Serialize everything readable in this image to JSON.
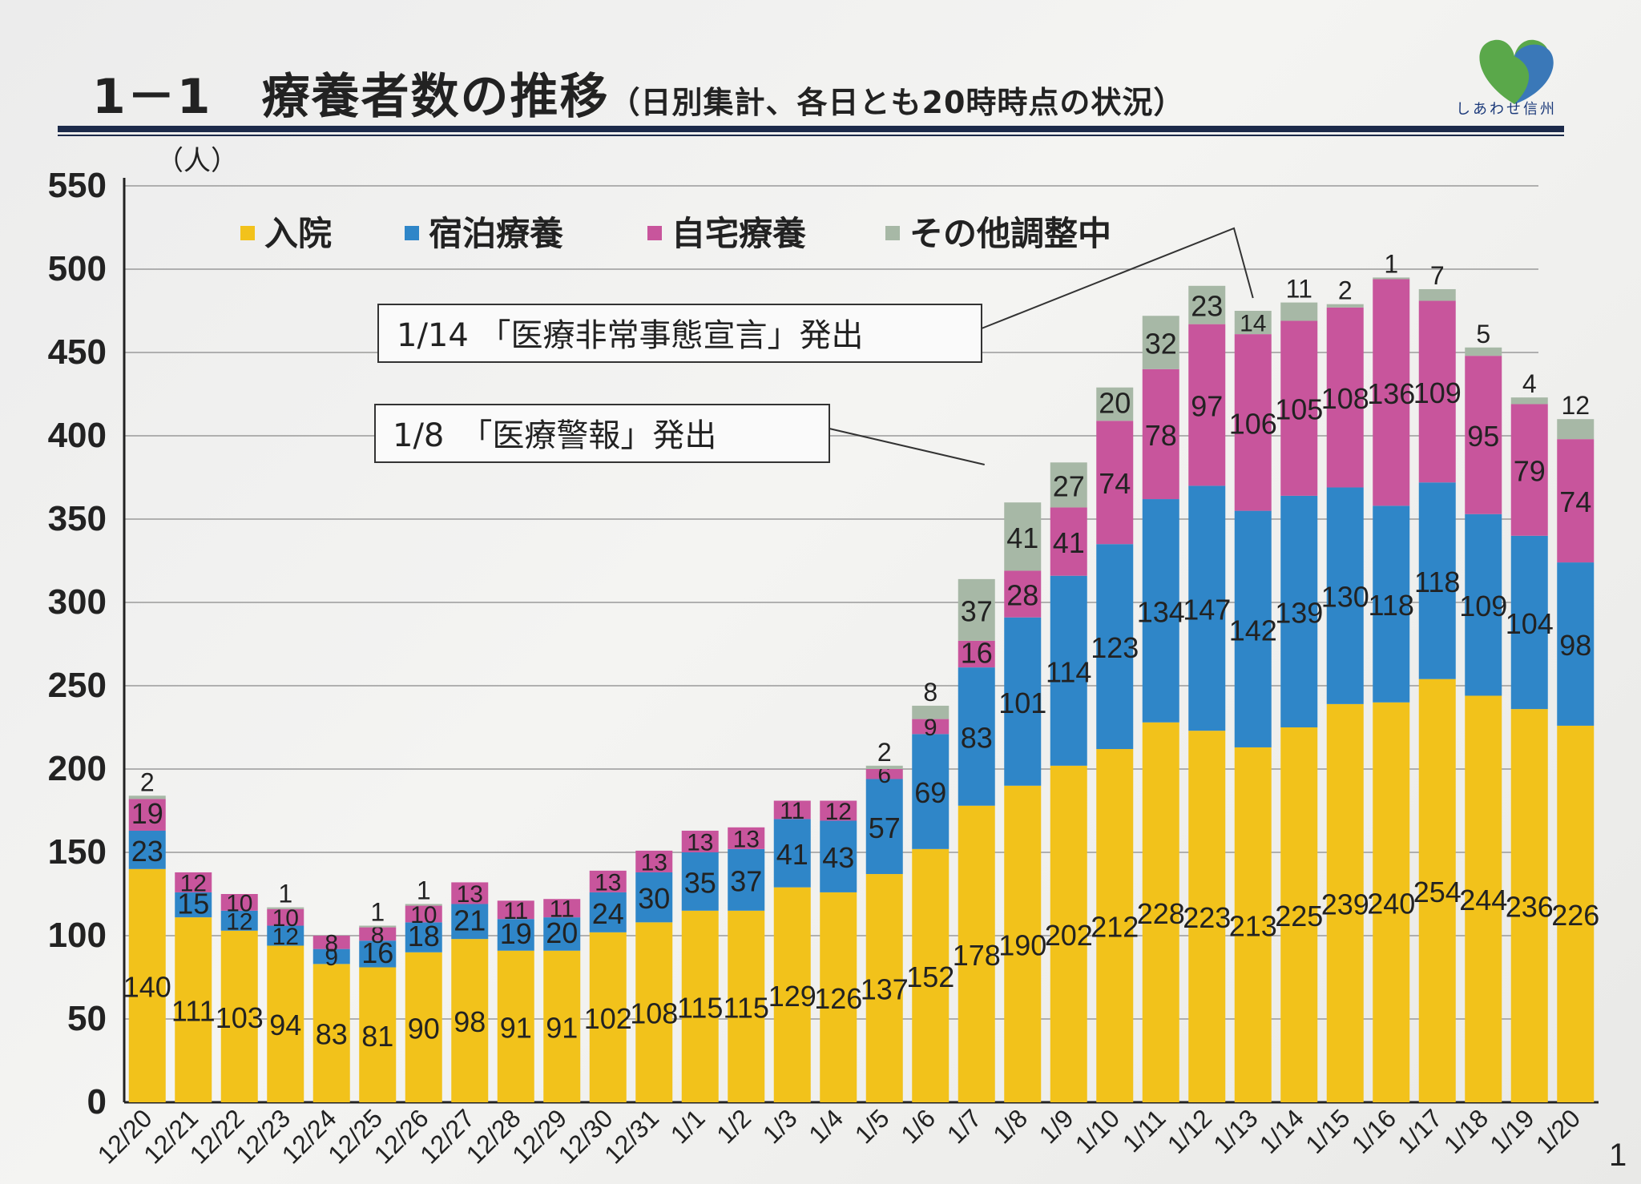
{
  "header": {
    "title_main": "1－1　療養者数の推移",
    "title_sub": "（日別集計、各日とも20時時点の状況）",
    "logo_text": "しあわせ信州"
  },
  "page_number": "1",
  "colors": {
    "入院": "#f2c21b",
    "宿泊療養": "#2f86c8",
    "自宅療養": "#c8559c",
    "その他調整中": "#a7b8a6",
    "title_rule": "#1c2a4a"
  },
  "chart_data": {
    "type": "bar",
    "stacked": true,
    "yunit": "（人）",
    "ylim": [
      0,
      550
    ],
    "yticks": [
      "0",
      "50",
      "100",
      "150",
      "200",
      "250",
      "300",
      "350",
      "400",
      "450",
      "500",
      "550"
    ],
    "grid": true,
    "legend_position": "top",
    "categories": [
      "12/20",
      "12/21",
      "12/22",
      "12/23",
      "12/24",
      "12/25",
      "12/26",
      "12/27",
      "12/28",
      "12/29",
      "12/30",
      "12/31",
      "1/1",
      "1/2",
      "1/3",
      "1/4",
      "1/5",
      "1/6",
      "1/7",
      "1/8",
      "1/9",
      "1/10",
      "1/11",
      "1/12",
      "1/13",
      "1/14",
      "1/15",
      "1/16",
      "1/17",
      "1/18",
      "1/19",
      "1/20"
    ],
    "series": [
      {
        "name": "入院",
        "color": "#f2c21b",
        "values": [
          140,
          111,
          103,
          94,
          83,
          81,
          90,
          98,
          91,
          91,
          102,
          108,
          115,
          115,
          129,
          126,
          137,
          152,
          178,
          190,
          202,
          212,
          228,
          223,
          213,
          225,
          239,
          240,
          254,
          244,
          236,
          226
        ]
      },
      {
        "name": "宿泊療養",
        "color": "#2f86c8",
        "values": [
          23,
          15,
          12,
          12,
          9,
          16,
          18,
          21,
          19,
          20,
          24,
          30,
          35,
          37,
          41,
          43,
          57,
          69,
          83,
          101,
          114,
          123,
          134,
          147,
          142,
          139,
          130,
          118,
          118,
          109,
          104,
          98
        ]
      },
      {
        "name": "自宅療養",
        "color": "#c8559c",
        "values": [
          19,
          12,
          10,
          10,
          8,
          8,
          10,
          13,
          11,
          11,
          13,
          13,
          13,
          13,
          11,
          12,
          6,
          9,
          16,
          28,
          41,
          74,
          78,
          97,
          106,
          105,
          108,
          136,
          109,
          95,
          79,
          74
        ]
      },
      {
        "name": "その他調整中",
        "color": "#a7b8a6",
        "values": [
          2,
          0,
          0,
          1,
          0,
          1,
          1,
          0,
          0,
          0,
          0,
          0,
          0,
          0,
          0,
          0,
          2,
          8,
          37,
          41,
          27,
          20,
          32,
          23,
          14,
          11,
          2,
          1,
          7,
          5,
          4,
          12
        ]
      }
    ],
    "data_labels": [
      {
        "入院": "140",
        "宿泊療養": "23",
        "自宅療養": "19",
        "その他調整中": "2"
      },
      {
        "入院": "111",
        "宿泊療養": "15",
        "自宅療養": "12"
      },
      {
        "入院": "103",
        "宿泊療養": "12",
        "自宅療養": "10"
      },
      {
        "入院": "94",
        "宿泊療養": "12",
        "自宅療養": "10",
        "その他調整中": "1"
      },
      {
        "入院": "83",
        "宿泊療養": "9",
        "自宅療養": "8"
      },
      {
        "入院": "81",
        "宿泊療養": "16",
        "自宅療養": "8",
        "その他調整中": "1"
      },
      {
        "入院": "90",
        "宿泊療養": "18",
        "自宅療養": "10",
        "その他調整中": "1"
      },
      {
        "入院": "98",
        "宿泊療養": "21",
        "自宅療養": "13"
      },
      {
        "入院": "91",
        "宿泊療養": "19",
        "自宅療養": "11"
      },
      {
        "入院": "91",
        "宿泊療養": "20",
        "自宅療養": "11"
      },
      {
        "入院": "102",
        "宿泊療養": "24",
        "自宅療養": "13"
      },
      {
        "入院": "108",
        "宿泊療養": "30",
        "自宅療養": "13"
      },
      {
        "入院": "115",
        "宿泊療養": "35",
        "自宅療養": "13"
      },
      {
        "入院": "115",
        "宿泊療養": "37",
        "自宅療養": "13"
      },
      {
        "入院": "129",
        "宿泊療養": "41",
        "自宅療養": "11"
      },
      {
        "入院": "126",
        "宿泊療養": "43",
        "自宅療養": "12"
      },
      {
        "入院": "137",
        "宿泊療養": "57",
        "自宅療養": "6",
        "その他調整中": "2"
      },
      {
        "入院": "152",
        "宿泊療養": "69",
        "自宅療養": "9",
        "その他調整中": "8"
      },
      {
        "入院": "178",
        "宿泊療養": "83",
        "自宅療養": "16",
        "その他調整中": "37"
      },
      {
        "入院": "190",
        "宿泊療養": "101",
        "自宅療養": "28",
        "その他調整中": "41"
      },
      {
        "入院": "202",
        "宿泊療養": "114",
        "自宅療養": "41",
        "その他調整中": "27"
      },
      {
        "入院": "212",
        "宿泊療養": "123",
        "自宅療養": "74",
        "その他調整中": "20"
      },
      {
        "入院": "228",
        "宿泊療養": "134",
        "自宅療養": "78",
        "その他調整中": "32"
      },
      {
        "入院": "223",
        "宿泊療養": "147",
        "自宅療養": "97",
        "その他調整中": "23"
      },
      {
        "入院": "213",
        "宿泊療養": "142",
        "自宅療養": "106",
        "その他調整中": "14"
      },
      {
        "入院": "225",
        "宿泊療養": "139",
        "自宅療養": "105",
        "その他調整中": "11"
      },
      {
        "入院": "239",
        "宿泊療養": "130",
        "自宅療養": "108",
        "その他調整中": "2"
      },
      {
        "入院": "240",
        "宿泊療養": "118",
        "自宅療養": "136",
        "その他調整中": "1"
      },
      {
        "入院": "254",
        "宿泊療養": "118",
        "自宅療養": "109",
        "その他調整中": "7"
      },
      {
        "入院": "244",
        "宿泊療養": "109",
        "自宅療養": "95",
        "その他調整中": "5"
      },
      {
        "入院": "236",
        "宿泊療養": "104",
        "自宅療養": "79",
        "その他調整中": "4"
      },
      {
        "入院": "226",
        "宿泊療養": "98",
        "自宅療養": "74",
        "その他調整中": "12"
      }
    ],
    "annotations": [
      {
        "text": "1/14 「医療非常事態宣言」発出",
        "target": "1/13"
      },
      {
        "text": "1/8　「医療警報」発出",
        "target": "1/7"
      }
    ]
  }
}
